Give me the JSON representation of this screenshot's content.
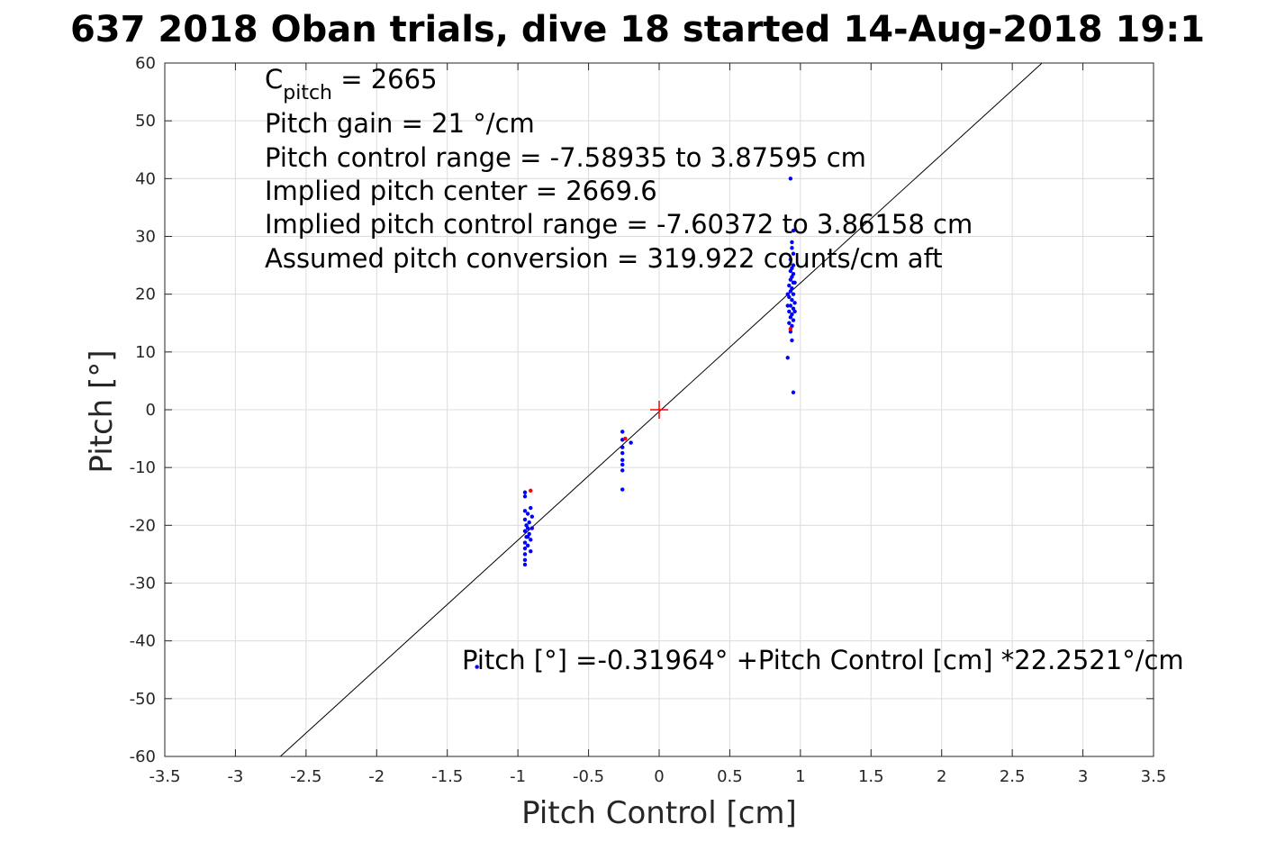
{
  "chart_data": {
    "type": "scatter",
    "title": "637 2018 Oban trials, dive 18 started 14-Aug-2018 19:1",
    "xlabel": "Pitch Control [cm]",
    "ylabel": "Pitch [°]",
    "xlim": [
      -3.5,
      3.5
    ],
    "ylim": [
      -60,
      60
    ],
    "xticks": [
      "-3.5",
      "-3",
      "-2.5",
      "-2",
      "-1.5",
      "-1",
      "-0.5",
      "0",
      "0.5",
      "1",
      "1.5",
      "2",
      "2.5",
      "3",
      "3.5"
    ],
    "yticks": [
      "-60",
      "-50",
      "-40",
      "-30",
      "-20",
      "-10",
      "0",
      "10",
      "20",
      "30",
      "40",
      "50",
      "60"
    ],
    "grid": true,
    "fit_line": {
      "intercept": -0.31964,
      "slope": 22.2521
    },
    "center_marker": {
      "x": 0,
      "y": 0,
      "color": "#ff0000"
    },
    "annotations": {
      "c_pitch_base": "C",
      "c_pitch_sub": "pitch",
      "c_pitch_value": " = 2665",
      "gain": "Pitch gain = 21 °/cm",
      "control_range": "Pitch control range = -7.58935 to 3.87595 cm",
      "implied_center": "Implied pitch center = 2669.6",
      "implied_range": "Implied pitch control range = -7.60372 to 3.86158 cm",
      "conversion": "Assumed pitch conversion = 319.922 counts/cm aft",
      "equation": "Pitch [°] =-0.31964° +Pitch Control [cm] *22.2521°/cm"
    },
    "series": [
      {
        "color": "#0000ff",
        "points": [
          [
            0.93,
            40
          ],
          [
            0.95,
            31
          ],
          [
            0.94,
            29
          ],
          [
            0.94,
            28
          ],
          [
            0.95,
            27
          ],
          [
            0.93,
            26
          ],
          [
            0.95,
            25
          ],
          [
            0.94,
            24.5
          ],
          [
            0.93,
            24
          ],
          [
            0.95,
            23.5
          ],
          [
            0.94,
            23
          ],
          [
            0.93,
            22.5
          ],
          [
            0.95,
            22
          ],
          [
            0.92,
            21.5
          ],
          [
            0.94,
            21
          ],
          [
            0.93,
            20.5
          ],
          [
            0.95,
            20
          ],
          [
            0.92,
            19.5
          ],
          [
            0.94,
            19
          ],
          [
            0.96,
            18.5
          ],
          [
            0.93,
            18
          ],
          [
            0.95,
            17.5
          ],
          [
            0.92,
            17
          ],
          [
            0.94,
            16.5
          ],
          [
            0.93,
            16
          ],
          [
            0.95,
            15.5
          ],
          [
            0.92,
            15
          ],
          [
            0.94,
            14.5
          ],
          [
            0.93,
            13.5
          ],
          [
            0.94,
            12
          ],
          [
            0.91,
            9
          ],
          [
            0.95,
            3
          ],
          [
            0.96,
            22
          ],
          [
            0.91,
            20
          ],
          [
            0.96,
            17
          ],
          [
            0.91,
            18
          ],
          [
            -0.26,
            -3.8
          ],
          [
            -0.26,
            -5.2
          ],
          [
            -0.26,
            -6.5
          ],
          [
            -0.26,
            -7.5
          ],
          [
            -0.26,
            -8.7
          ],
          [
            -0.26,
            -9.5
          ],
          [
            -0.26,
            -10.5
          ],
          [
            -0.26,
            -13.8
          ],
          [
            -0.2,
            -5.7
          ],
          [
            -0.95,
            -14.3
          ],
          [
            -0.95,
            -15
          ],
          [
            -0.91,
            -17
          ],
          [
            -0.95,
            -17.5
          ],
          [
            -0.93,
            -18
          ],
          [
            -0.9,
            -18.5
          ],
          [
            -0.95,
            -19
          ],
          [
            -0.92,
            -19.5
          ],
          [
            -0.94,
            -20
          ],
          [
            -0.9,
            -20.5
          ],
          [
            -0.95,
            -21
          ],
          [
            -0.92,
            -21.5
          ],
          [
            -0.94,
            -22
          ],
          [
            -0.91,
            -22.5
          ],
          [
            -0.95,
            -23
          ],
          [
            -0.93,
            -23.5
          ],
          [
            -0.95,
            -24
          ],
          [
            -0.91,
            -24.5
          ],
          [
            -0.95,
            -25
          ],
          [
            -0.95,
            -26
          ],
          [
            -0.95,
            -26.8
          ],
          [
            -0.93,
            -20.5
          ],
          [
            -0.93,
            -22
          ],
          [
            -1.29,
            -44.5
          ]
        ]
      },
      {
        "color": "#ff0000",
        "points": [
          [
            0.93,
            14
          ],
          [
            -0.91,
            -14
          ],
          [
            -0.24,
            -5
          ]
        ]
      }
    ]
  }
}
